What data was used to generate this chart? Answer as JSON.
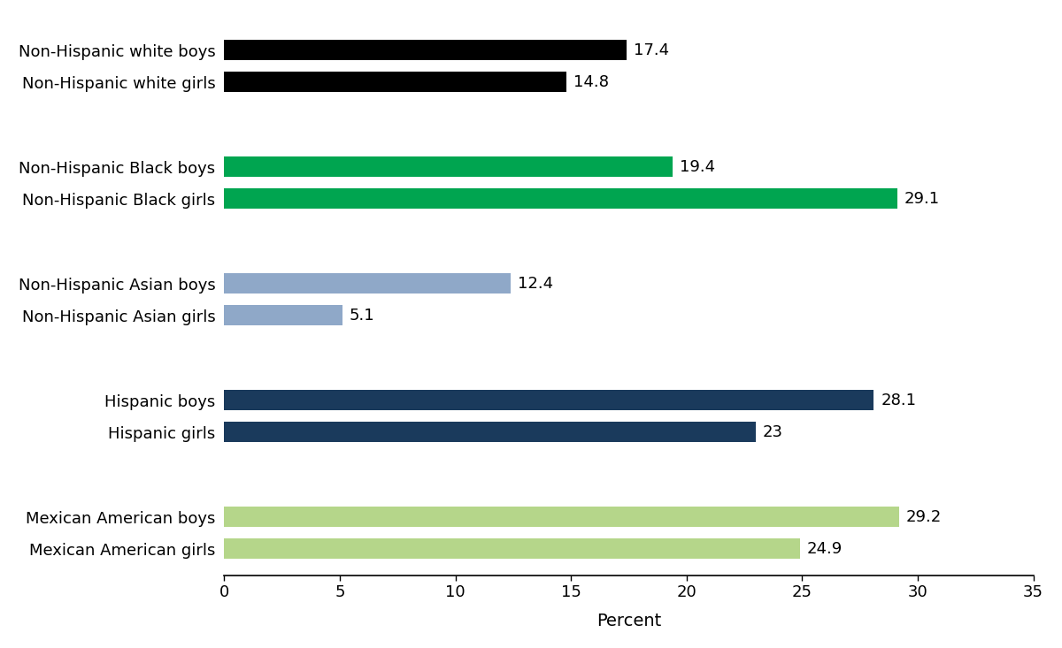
{
  "categories": [
    "Non-Hispanic white boys",
    "Non-Hispanic white girls",
    "Non-Hispanic Black boys",
    "Non-Hispanic Black girls",
    "Non-Hispanic Asian boys",
    "Non-Hispanic Asian girls",
    "Hispanic boys",
    "Hispanic girls",
    "Mexican American boys",
    "Mexican American girls"
  ],
  "values": [
    17.4,
    14.8,
    19.4,
    29.1,
    12.4,
    5.1,
    28.1,
    23.0,
    29.2,
    24.9
  ],
  "colors": [
    "#000000",
    "#000000",
    "#00a550",
    "#00a550",
    "#8fa8c8",
    "#8fa8c8",
    "#1a3a5c",
    "#1a3a5c",
    "#b5d68a",
    "#b5d68a"
  ],
  "xlabel": "Percent",
  "xlim": [
    0,
    35
  ],
  "xticks": [
    0,
    5,
    10,
    15,
    20,
    25,
    30,
    35
  ],
  "bar_height": 0.38,
  "value_fontsize": 13,
  "label_fontsize": 13,
  "xlabel_fontsize": 14,
  "background_color": "#ffffff",
  "y_positions": [
    11.6,
    11.0,
    9.4,
    8.8,
    7.2,
    6.6,
    5.0,
    4.4,
    2.8,
    2.2
  ]
}
